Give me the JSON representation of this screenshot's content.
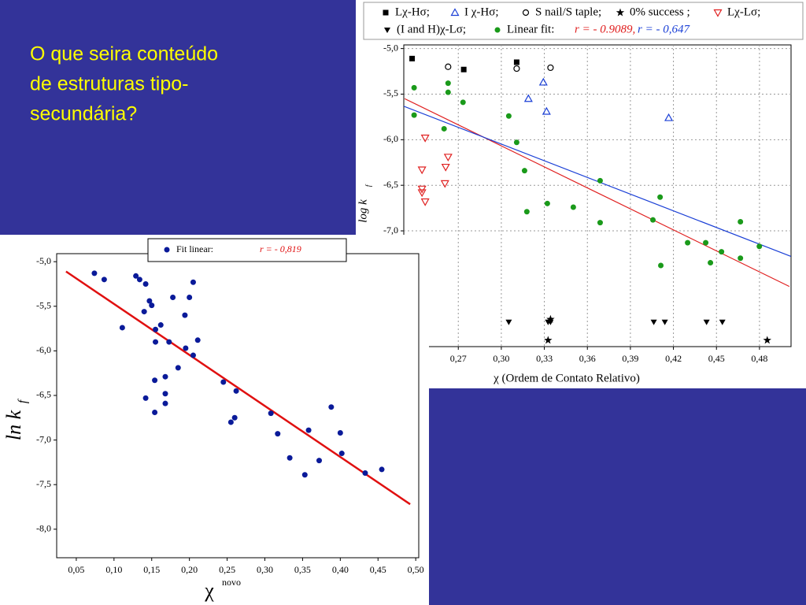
{
  "slide_text": [
    "O que seira conteúdo",
    "de estruturas tipo-",
    "secundária?"
  ],
  "chart_data": [
    {
      "type": "scatter",
      "xlabel": "χ   (Ordem de Contato Relativo)",
      "ylabel": "log k",
      "ylabel_sub": "f",
      "xlim": [
        0.232,
        0.502
      ],
      "ylim": [
        -8.27,
        -4.96
      ],
      "grid": true,
      "xticks": [
        {
          "value": 0.27,
          "label": "0,27"
        },
        {
          "value": 0.3,
          "label": "0,30"
        },
        {
          "value": 0.33,
          "label": "0,33"
        },
        {
          "value": 0.36,
          "label": "0,36"
        },
        {
          "value": 0.39,
          "label": "0,39"
        },
        {
          "value": 0.42,
          "label": "0,42"
        },
        {
          "value": 0.45,
          "label": "0,45"
        },
        {
          "value": 0.48,
          "label": "0,48"
        }
      ],
      "yticks": [
        {
          "value": -5.0,
          "label": "-5,0"
        },
        {
          "value": -5.5,
          "label": "-5,5"
        },
        {
          "value": -6.0,
          "label": "-6,0"
        },
        {
          "value": -6.5,
          "label": "-6,5"
        },
        {
          "value": -7.0,
          "label": "-7,0"
        }
      ],
      "series": [
        {
          "name": "Lχ-Hσ;",
          "color": "#000000",
          "marker": "square",
          "x": [
            0.2378,
            0.2738,
            0.3107
          ],
          "values": [
            -5.11,
            -5.23,
            -5.15
          ]
        },
        {
          "name": "I χ-Hσ;",
          "color": "#1a3fd6",
          "marker": "triangle-open",
          "x": [
            0.3293,
            0.3189,
            0.3315,
            0.4167
          ],
          "values": [
            -5.37,
            -5.55,
            -5.69,
            -5.76
          ]
        },
        {
          "name": "S nail/S taple;",
          "color": "#000000",
          "marker": "circle-open",
          "x": [
            0.2629,
            0.3107,
            0.3343
          ],
          "values": [
            -5.2,
            -5.22,
            -5.21
          ]
        },
        {
          "name": "0% success ;",
          "color": "#000000",
          "marker": "star",
          "x": [
            0.3326,
            0.4854,
            0.3343
          ],
          "values": [
            -8.2,
            -8.2,
            -7.97
          ]
        },
        {
          "name": "Lχ-Lσ;",
          "color": "#e02020",
          "marker": "triangle-down-open",
          "x": [
            0.2469,
            0.2447,
            0.2447,
            0.2447,
            0.2629,
            0.2612,
            0.2607,
            0.2469
          ],
          "values": [
            -5.98,
            -6.33,
            -6.54,
            -6.58,
            -6.19,
            -6.3,
            -6.48,
            -6.68
          ]
        },
        {
          "name": "(I and H)χ-Lσ;",
          "color": "#000000",
          "marker": "triangle-down",
          "x": [
            0.3052,
            0.3326,
            0.3343,
            0.4063,
            0.414,
            0.4431,
            0.4541
          ],
          "values": [
            -8.0,
            -8.0,
            -8.0,
            -8.0,
            -8.0,
            -8.0,
            -8.0
          ]
        },
        {
          "name": "Linear fit:",
          "color": "#1a9a1a",
          "marker": "dot",
          "x": [
            0.2392,
            0.2392,
            0.2629,
            0.2629,
            0.2733,
            0.2601,
            0.3052,
            0.3107,
            0.3162,
            0.3321,
            0.3502,
            0.3689,
            0.3689,
            0.4107,
            0.4057,
            0.4112,
            0.4299,
            0.4425,
            0.4458,
            0.4535,
            0.4667,
            0.4667,
            0.4799,
            0.3178
          ],
          "values": [
            -5.43,
            -5.73,
            -5.38,
            -5.48,
            -5.59,
            -5.88,
            -5.74,
            -6.03,
            -6.34,
            -6.7,
            -6.74,
            -6.45,
            -6.91,
            -6.63,
            -6.88,
            -7.38,
            -7.13,
            -7.13,
            -7.35,
            -7.23,
            -6.9,
            -7.3,
            -7.17,
            -6.79
          ]
        },
        {
          "type": "line",
          "color": "#e02020",
          "x": [
            0.2326,
            0.5008
          ],
          "values": [
            -5.55,
            -7.61
          ]
        },
        {
          "type": "line",
          "color": "#1a3fd6",
          "x": [
            0.2315,
            0.5019
          ],
          "values": [
            -5.63,
            -7.28
          ]
        }
      ],
      "fit_labels": [
        {
          "text": "r = - 0.9089,",
          "color": "#e02020"
        },
        {
          "text": "r = - 0,647",
          "color": "#1a3fd6"
        }
      ]
    },
    {
      "type": "scatter",
      "xlabel": "χ",
      "xlabel_sup": "novo",
      "ylabel": "ln k",
      "ylabel_sub": "f",
      "xlim": [
        0.024,
        0.504
      ],
      "ylim": [
        -8.32,
        -4.91
      ],
      "grid": false,
      "xticks": [
        {
          "value": 0.05,
          "label": "0,05"
        },
        {
          "value": 0.1,
          "label": "0,10"
        },
        {
          "value": 0.15,
          "label": "0,15"
        },
        {
          "value": 0.2,
          "label": "0,20"
        },
        {
          "value": 0.25,
          "label": "0,25"
        },
        {
          "value": 0.3,
          "label": "0,30"
        },
        {
          "value": 0.35,
          "label": "0,35"
        },
        {
          "value": 0.4,
          "label": "0,40"
        },
        {
          "value": 0.45,
          "label": "0,45"
        },
        {
          "value": 0.5,
          "label": "0,50"
        }
      ],
      "yticks": [
        {
          "value": -5.0,
          "label": "-5,0"
        },
        {
          "value": -5.5,
          "label": "-5,5"
        },
        {
          "value": -6.0,
          "label": "-6,0"
        },
        {
          "value": -6.5,
          "label": "-6,5"
        },
        {
          "value": -7.0,
          "label": "-7,0"
        },
        {
          "value": -7.5,
          "label": "-7,5"
        },
        {
          "value": -8.0,
          "label": "-8,0"
        }
      ],
      "series": [
        {
          "name": "Fit linear:",
          "color": "#0a1a99",
          "marker": "dot",
          "x": [
            0.074,
            0.087,
            0.129,
            0.134,
            0.142,
            0.111,
            0.147,
            0.15,
            0.14,
            0.162,
            0.155,
            0.155,
            0.173,
            0.178,
            0.194,
            0.2,
            0.205,
            0.211,
            0.195,
            0.205,
            0.185,
            0.168,
            0.154,
            0.142,
            0.168,
            0.168,
            0.154,
            0.245,
            0.255,
            0.262,
            0.26,
            0.308,
            0.317,
            0.333,
            0.353,
            0.358,
            0.372,
            0.388,
            0.4,
            0.402,
            0.433,
            0.455
          ],
          "values": [
            -5.13,
            -5.2,
            -5.16,
            -5.2,
            -5.25,
            -5.74,
            -5.44,
            -5.49,
            -5.56,
            -5.71,
            -5.76,
            -5.9,
            -5.9,
            -5.4,
            -5.6,
            -5.4,
            -5.23,
            -5.88,
            -5.97,
            -6.05,
            -6.19,
            -6.29,
            -6.33,
            -6.53,
            -6.48,
            -6.59,
            -6.69,
            -6.35,
            -6.8,
            -6.45,
            -6.75,
            -6.7,
            -6.93,
            -7.2,
            -7.39,
            -6.89,
            -7.23,
            -6.63,
            -6.92,
            -7.15,
            -7.37,
            -7.33
          ]
        },
        {
          "type": "line",
          "color": "#e01010",
          "x": [
            0.0364,
            0.4926
          ],
          "values": [
            -5.11,
            -7.72
          ]
        }
      ],
      "fit_labels": [
        {
          "text": "r = - 0,819",
          "color": "#e01010"
        }
      ]
    }
  ]
}
